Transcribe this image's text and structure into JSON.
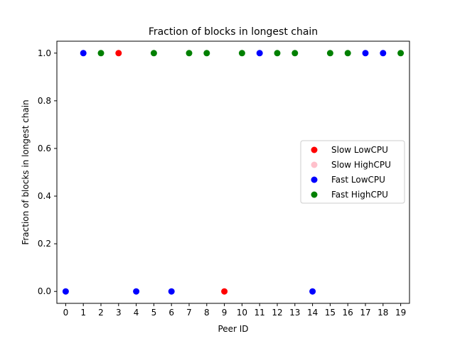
{
  "chart_data": {
    "type": "scatter",
    "title": "Fraction of blocks in longest chain",
    "xlabel": "Peer ID",
    "ylabel": "Fraction of blocks in longest chain",
    "xlim": [
      -0.5,
      19.5
    ],
    "ylim": [
      -0.05,
      1.05
    ],
    "xticks": [
      0,
      1,
      2,
      3,
      4,
      5,
      6,
      7,
      8,
      9,
      10,
      11,
      12,
      13,
      14,
      15,
      16,
      17,
      18,
      19
    ],
    "yticks": [
      0.0,
      0.2,
      0.4,
      0.6,
      0.8,
      1.0
    ],
    "ytick_labels": [
      "0.0",
      "0.2",
      "0.4",
      "0.6",
      "0.8",
      "1.0"
    ],
    "grid": false,
    "legend_position": "center-right",
    "series": [
      {
        "name": "Slow LowCPU",
        "color": "#ff0000",
        "points": [
          {
            "x": 3,
            "y": 1.0
          },
          {
            "x": 9,
            "y": 0.0
          }
        ]
      },
      {
        "name": "Slow HighCPU",
        "color": "#ffc0cb",
        "points": []
      },
      {
        "name": "Fast LowCPU",
        "color": "#0000ff",
        "points": [
          {
            "x": 0,
            "y": 0.0
          },
          {
            "x": 1,
            "y": 1.0
          },
          {
            "x": 4,
            "y": 0.0
          },
          {
            "x": 6,
            "y": 0.0
          },
          {
            "x": 11,
            "y": 1.0
          },
          {
            "x": 14,
            "y": 0.0
          },
          {
            "x": 17,
            "y": 1.0
          },
          {
            "x": 18,
            "y": 1.0
          }
        ]
      },
      {
        "name": "Fast HighCPU",
        "color": "#008000",
        "points": [
          {
            "x": 2,
            "y": 1.0
          },
          {
            "x": 5,
            "y": 1.0
          },
          {
            "x": 7,
            "y": 1.0
          },
          {
            "x": 8,
            "y": 1.0
          },
          {
            "x": 10,
            "y": 1.0
          },
          {
            "x": 12,
            "y": 1.0
          },
          {
            "x": 13,
            "y": 1.0
          },
          {
            "x": 15,
            "y": 1.0
          },
          {
            "x": 16,
            "y": 1.0
          },
          {
            "x": 19,
            "y": 1.0
          }
        ]
      }
    ]
  }
}
